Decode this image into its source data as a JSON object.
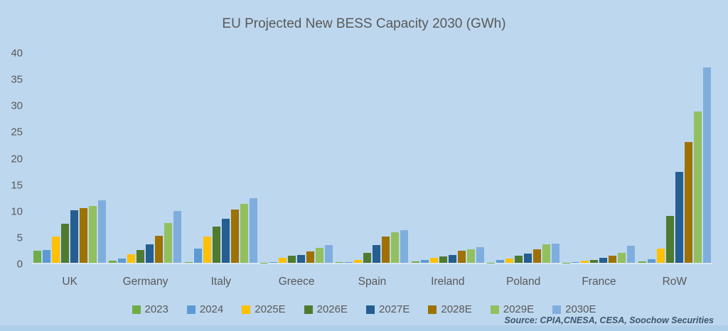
{
  "colors": {
    "background": "#BDD7EE",
    "axis_line": "#DAE7F3",
    "text": "#595959",
    "source_text": "#3D5570",
    "bottom_strip": "#AECFEA"
  },
  "source_note": "Source: CPIA,CNESA, CESA, Soochow Securities",
  "chart_data": {
    "type": "bar",
    "title": "EU Projected New BESS Capacity 2030 (GWh)",
    "xlabel": "",
    "ylabel": "",
    "ylim": [
      0,
      40
    ],
    "yticks": [
      0,
      5,
      10,
      15,
      20,
      25,
      30,
      35,
      40
    ],
    "grid": false,
    "legend_position": "bottom",
    "categories": [
      "UK",
      "Germany",
      "Italy",
      "Greece",
      "Spain",
      "Ireland",
      "Poland",
      "France",
      "RoW"
    ],
    "series": [
      {
        "name": "2023",
        "color": "#70AD47",
        "values": [
          2.3,
          0.4,
          0.2,
          0.05,
          0.1,
          0.3,
          0.05,
          0.05,
          0.3
        ]
      },
      {
        "name": "2024",
        "color": "#5B9BD5",
        "values": [
          2.5,
          0.8,
          2.7,
          0.1,
          0.2,
          0.5,
          0.5,
          0.2,
          0.7
        ]
      },
      {
        "name": "2025E",
        "color": "#FFC000",
        "values": [
          5.0,
          1.6,
          5.0,
          1.0,
          0.6,
          0.9,
          0.8,
          0.4,
          2.7
        ]
      },
      {
        "name": "2026E",
        "color": "#4E7B2F",
        "values": [
          7.5,
          2.4,
          6.9,
          1.3,
          1.9,
          1.2,
          1.4,
          0.6,
          9.0
        ]
      },
      {
        "name": "2027E",
        "color": "#255E91",
        "values": [
          10.0,
          3.5,
          8.4,
          1.5,
          3.4,
          1.5,
          1.8,
          0.9,
          17.3
        ]
      },
      {
        "name": "2028E",
        "color": "#9E7100",
        "values": [
          10.4,
          5.1,
          10.2,
          2.2,
          5.0,
          2.3,
          2.6,
          1.4,
          23.1
        ]
      },
      {
        "name": "2029E",
        "color": "#92C05E",
        "values": [
          10.9,
          7.6,
          11.2,
          2.8,
          5.9,
          2.6,
          3.5,
          1.9,
          28.9
        ]
      },
      {
        "name": "2030E",
        "color": "#7FAEDE",
        "values": [
          11.9,
          9.9,
          12.3,
          3.4,
          6.2,
          3.0,
          3.6,
          3.3,
          37.3
        ]
      }
    ]
  }
}
